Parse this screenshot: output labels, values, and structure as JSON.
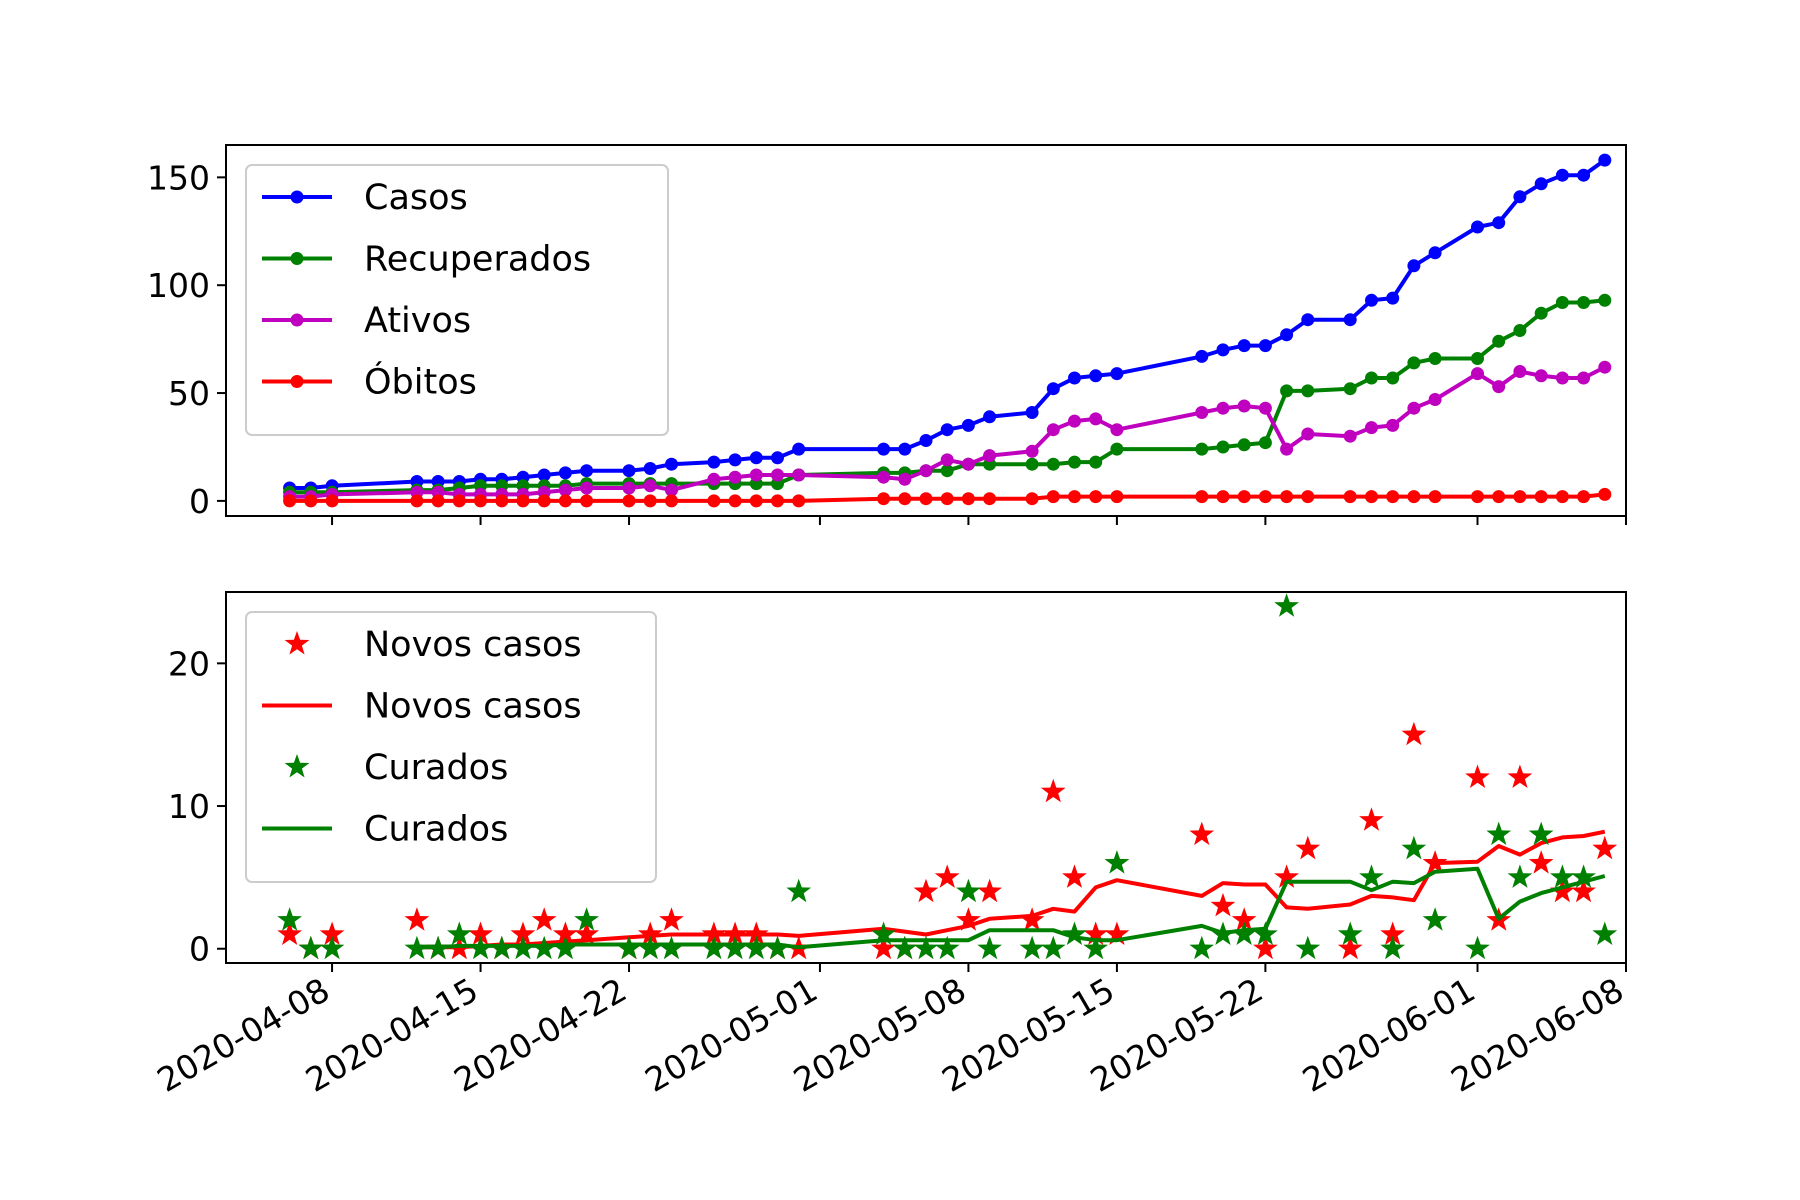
{
  "chart_data": [
    {
      "type": "line",
      "title": "",
      "xlabel": "",
      "ylabel": "",
      "x_axis_type": "date",
      "xlim": [
        "2020-04-03",
        "2020-06-08"
      ],
      "ylim": [
        -7,
        165
      ],
      "y_ticks": [
        0,
        50,
        100,
        150
      ],
      "x_ticks": [
        "2020-04-08",
        "2020-04-15",
        "2020-04-22",
        "2020-05-01",
        "2020-05-08",
        "2020-05-15",
        "2020-05-22",
        "2020-06-01",
        "2020-06-08"
      ],
      "show_x_tick_labels": false,
      "grid": false,
      "legend_position": "top-left",
      "x": [
        "2020-04-06",
        "2020-04-07",
        "2020-04-08",
        "2020-04-12",
        "2020-04-13",
        "2020-04-14",
        "2020-04-15",
        "2020-04-16",
        "2020-04-17",
        "2020-04-18",
        "2020-04-19",
        "2020-04-20",
        "2020-04-22",
        "2020-04-23",
        "2020-04-24",
        "2020-04-26",
        "2020-04-27",
        "2020-04-28",
        "2020-04-29",
        "2020-04-30",
        "2020-05-04",
        "2020-05-05",
        "2020-05-06",
        "2020-05-07",
        "2020-05-08",
        "2020-05-09",
        "2020-05-11",
        "2020-05-12",
        "2020-05-13",
        "2020-05-14",
        "2020-05-15",
        "2020-05-19",
        "2020-05-20",
        "2020-05-21",
        "2020-05-22",
        "2020-05-23",
        "2020-05-24",
        "2020-05-26",
        "2020-05-27",
        "2020-05-28",
        "2020-05-29",
        "2020-05-30",
        "2020-06-01",
        "2020-06-02",
        "2020-06-03",
        "2020-06-04",
        "2020-06-05",
        "2020-06-06",
        "2020-06-07"
      ],
      "series": [
        {
          "name": "Casos",
          "color": "#0000ff",
          "marker": "circle",
          "values": [
            6,
            6,
            7,
            9,
            9,
            9,
            10,
            10,
            11,
            12,
            13,
            14,
            14,
            15,
            17,
            18,
            19,
            20,
            20,
            24,
            24,
            24,
            28,
            33,
            35,
            39,
            41,
            52,
            57,
            58,
            59,
            67,
            70,
            72,
            72,
            77,
            84,
            84,
            93,
            94,
            109,
            115,
            127,
            129,
            141,
            147,
            151,
            151,
            158
          ]
        },
        {
          "name": "Recuperados",
          "color": "#008000",
          "marker": "circle",
          "values": [
            4,
            4,
            4,
            5,
            5,
            6,
            7,
            7,
            7,
            7,
            7,
            8,
            8,
            8,
            8,
            8,
            8,
            8,
            8,
            12,
            13,
            13,
            14,
            14,
            17,
            17,
            17,
            17,
            18,
            18,
            24,
            24,
            25,
            26,
            27,
            51,
            51,
            52,
            57,
            57,
            64,
            66,
            66,
            74,
            79,
            87,
            92,
            92,
            93
          ]
        },
        {
          "name": "Ativos",
          "color": "#bf00bf",
          "marker": "circle",
          "values": [
            2,
            2,
            3,
            4,
            4,
            3,
            3,
            3,
            3,
            4,
            5,
            6,
            6,
            7,
            5,
            10,
            11,
            12,
            12,
            12,
            11,
            10,
            14,
            19,
            17,
            21,
            23,
            33,
            37,
            38,
            33,
            41,
            43,
            44,
            43,
            24,
            31,
            30,
            34,
            35,
            43,
            47,
            59,
            53,
            60,
            58,
            57,
            57,
            62
          ]
        },
        {
          "name": "Óbitos",
          "color": "#ff0000",
          "marker": "circle",
          "values": [
            0,
            0,
            0,
            0,
            0,
            0,
            0,
            0,
            0,
            0,
            0,
            0,
            0,
            0,
            0,
            0,
            0,
            0,
            0,
            0,
            1,
            1,
            1,
            1,
            1,
            1,
            1,
            2,
            2,
            2,
            2,
            2,
            2,
            2,
            2,
            2,
            2,
            2,
            2,
            2,
            2,
            2,
            2,
            2,
            2,
            2,
            2,
            2,
            3
          ]
        }
      ]
    },
    {
      "type": "line",
      "title": "",
      "xlabel": "",
      "ylabel": "",
      "x_axis_type": "date",
      "xlim": [
        "2020-04-03",
        "2020-06-08"
      ],
      "ylim": [
        -1,
        25
      ],
      "y_ticks": [
        0,
        10,
        20
      ],
      "x_ticks": [
        "2020-04-08",
        "2020-04-15",
        "2020-04-22",
        "2020-05-01",
        "2020-05-08",
        "2020-05-15",
        "2020-05-22",
        "2020-06-01",
        "2020-06-08"
      ],
      "x_tick_labels": [
        "2020-04-08",
        "2020-04-15",
        "2020-04-22",
        "2020-05-01",
        "2020-05-08",
        "2020-05-15",
        "2020-05-22",
        "2020-06-01",
        "2020-06-08"
      ],
      "show_x_tick_labels": true,
      "x_tick_rotation": 30,
      "grid": false,
      "legend_position": "top-left",
      "legend": [
        {
          "label": "Novos casos",
          "kind": "marker",
          "color": "#ff0000"
        },
        {
          "label": "Novos casos",
          "kind": "line",
          "color": "#ff0000"
        },
        {
          "label": "Curados",
          "kind": "marker",
          "color": "#008000"
        },
        {
          "label": "Curados",
          "kind": "line",
          "color": "#008000"
        }
      ],
      "series": [
        {
          "name": "Novos casos",
          "kind": "scatter",
          "marker": "star",
          "color": "#ff0000",
          "x": [
            "2020-04-06",
            "2020-04-07",
            "2020-04-08",
            "2020-04-12",
            "2020-04-13",
            "2020-04-14",
            "2020-04-15",
            "2020-04-16",
            "2020-04-17",
            "2020-04-18",
            "2020-04-19",
            "2020-04-20",
            "2020-04-22",
            "2020-04-23",
            "2020-04-24",
            "2020-04-26",
            "2020-04-27",
            "2020-04-28",
            "2020-04-29",
            "2020-04-30",
            "2020-05-04",
            "2020-05-05",
            "2020-05-06",
            "2020-05-07",
            "2020-05-08",
            "2020-05-09",
            "2020-05-11",
            "2020-05-12",
            "2020-05-13",
            "2020-05-14",
            "2020-05-15",
            "2020-05-19",
            "2020-05-20",
            "2020-05-21",
            "2020-05-22",
            "2020-05-23",
            "2020-05-24",
            "2020-05-26",
            "2020-05-27",
            "2020-05-28",
            "2020-05-29",
            "2020-05-30",
            "2020-06-01",
            "2020-06-02",
            "2020-06-03",
            "2020-06-04",
            "2020-06-05",
            "2020-06-06",
            "2020-06-07"
          ],
          "values": [
            1,
            0,
            1,
            2,
            0,
            0,
            1,
            0,
            1,
            2,
            1,
            1,
            0,
            1,
            2,
            1,
            1,
            1,
            0,
            0,
            0,
            0,
            4,
            5,
            2,
            4,
            2,
            11,
            5,
            1,
            1,
            8,
            3,
            2,
            0,
            5,
            7,
            0,
            9,
            1,
            15,
            6,
            12,
            2,
            12,
            6,
            4,
            4,
            7
          ]
        },
        {
          "name": "Novos casos",
          "kind": "line",
          "color": "#ff0000",
          "x": [
            "2020-04-12",
            "2020-04-13",
            "2020-04-14",
            "2020-04-15",
            "2020-04-16",
            "2020-04-17",
            "2020-04-18",
            "2020-04-19",
            "2020-04-20",
            "2020-04-22",
            "2020-04-23",
            "2020-04-24",
            "2020-04-26",
            "2020-04-27",
            "2020-04-28",
            "2020-04-29",
            "2020-04-30",
            "2020-05-04",
            "2020-05-05",
            "2020-05-06",
            "2020-05-07",
            "2020-05-08",
            "2020-05-09",
            "2020-05-11",
            "2020-05-12",
            "2020-05-13",
            "2020-05-14",
            "2020-05-15",
            "2020-05-19",
            "2020-05-20",
            "2020-05-21",
            "2020-05-22",
            "2020-05-23",
            "2020-05-24",
            "2020-05-26",
            "2020-05-27",
            "2020-05-28",
            "2020-05-29",
            "2020-05-30",
            "2020-06-01",
            "2020-06-02",
            "2020-06-03",
            "2020-06-04",
            "2020-06-05",
            "2020-06-06",
            "2020-06-07"
          ],
          "values": [
            0.1,
            0.1,
            0.1,
            0.2,
            0.3,
            0.3,
            0.4,
            0.5,
            0.6,
            0.8,
            0.9,
            1.0,
            1.0,
            1.0,
            1.0,
            1.0,
            0.9,
            1.4,
            1.2,
            1.0,
            1.3,
            1.6,
            2.1,
            2.3,
            2.8,
            2.6,
            4.3,
            4.8,
            3.7,
            4.6,
            4.5,
            4.5,
            2.9,
            2.8,
            3.1,
            3.7,
            3.6,
            3.4,
            6.0,
            6.1,
            7.2,
            6.6,
            7.4,
            7.8,
            7.9,
            8.2
          ]
        },
        {
          "name": "Curados",
          "kind": "scatter",
          "marker": "star",
          "color": "#008000",
          "x": [
            "2020-04-06",
            "2020-04-07",
            "2020-04-08",
            "2020-04-12",
            "2020-04-13",
            "2020-04-14",
            "2020-04-15",
            "2020-04-16",
            "2020-04-17",
            "2020-04-18",
            "2020-04-19",
            "2020-04-20",
            "2020-04-22",
            "2020-04-23",
            "2020-04-24",
            "2020-04-26",
            "2020-04-27",
            "2020-04-28",
            "2020-04-29",
            "2020-04-30",
            "2020-05-04",
            "2020-05-05",
            "2020-05-06",
            "2020-05-07",
            "2020-05-08",
            "2020-05-09",
            "2020-05-11",
            "2020-05-12",
            "2020-05-13",
            "2020-05-14",
            "2020-05-15",
            "2020-05-19",
            "2020-05-20",
            "2020-05-21",
            "2020-05-22",
            "2020-05-23",
            "2020-05-24",
            "2020-05-26",
            "2020-05-27",
            "2020-05-28",
            "2020-05-29",
            "2020-05-30",
            "2020-06-01",
            "2020-06-02",
            "2020-06-03",
            "2020-06-04",
            "2020-06-05",
            "2020-06-06",
            "2020-06-07"
          ],
          "values": [
            2,
            0,
            0,
            0,
            0,
            1,
            0,
            0,
            0,
            0,
            0,
            2,
            0,
            0,
            0,
            0,
            0,
            0,
            0,
            4,
            1,
            0,
            0,
            0,
            4,
            0,
            0,
            0,
            1,
            0,
            6,
            0,
            1,
            1,
            1,
            24,
            0,
            1,
            5,
            0,
            7,
            2,
            0,
            8,
            5,
            8,
            5,
            5,
            1
          ]
        },
        {
          "name": "Curados",
          "kind": "line",
          "color": "#008000",
          "x": [
            "2020-04-12",
            "2020-04-13",
            "2020-04-14",
            "2020-04-15",
            "2020-04-16",
            "2020-04-17",
            "2020-04-18",
            "2020-04-19",
            "2020-04-20",
            "2020-04-22",
            "2020-04-23",
            "2020-04-24",
            "2020-04-26",
            "2020-04-27",
            "2020-04-28",
            "2020-04-29",
            "2020-04-30",
            "2020-05-04",
            "2020-05-05",
            "2020-05-06",
            "2020-05-07",
            "2020-05-08",
            "2020-05-09",
            "2020-05-11",
            "2020-05-12",
            "2020-05-13",
            "2020-05-14",
            "2020-05-15",
            "2020-05-19",
            "2020-05-20",
            "2020-05-21",
            "2020-05-22",
            "2020-05-23",
            "2020-05-24",
            "2020-05-26",
            "2020-05-27",
            "2020-05-28",
            "2020-05-29",
            "2020-05-30",
            "2020-06-01",
            "2020-06-02",
            "2020-06-03",
            "2020-06-04",
            "2020-06-05",
            "2020-06-06",
            "2020-06-07"
          ],
          "values": [
            0.1,
            0.1,
            0.2,
            0.2,
            0.2,
            0.2,
            0.2,
            0.3,
            0.3,
            0.3,
            0.3,
            0.3,
            0.3,
            0.3,
            0.3,
            0.3,
            0.1,
            0.6,
            0.6,
            0.6,
            0.6,
            0.6,
            1.3,
            1.3,
            1.3,
            0.8,
            0.6,
            0.6,
            1.6,
            1.1,
            1.3,
            1.4,
            4.7,
            4.7,
            4.7,
            4.1,
            4.7,
            4.6,
            5.4,
            5.6,
            2.1,
            3.3,
            3.9,
            4.3,
            4.7,
            5.1
          ]
        }
      ]
    }
  ]
}
